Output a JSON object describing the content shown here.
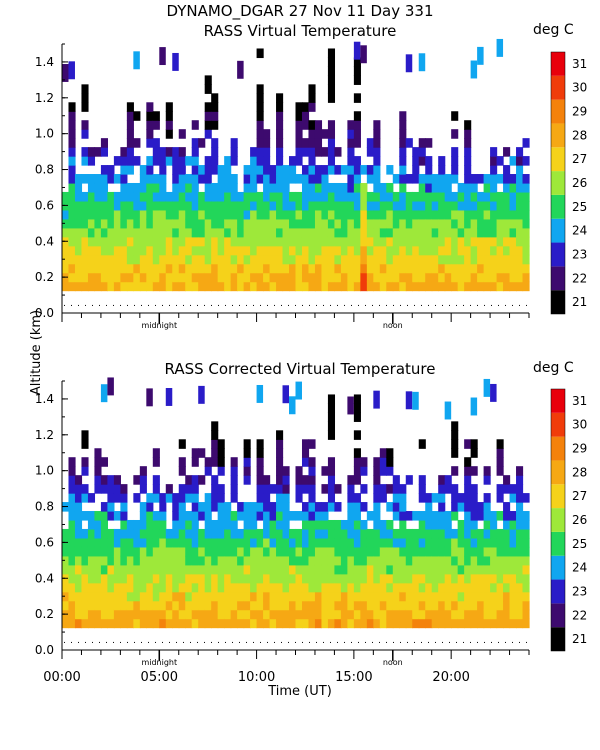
{
  "page": {
    "title": "DYNAMO_DGAR  27 Nov 11 Day 331",
    "ylabel": "Altitude (km)",
    "xlabel": "Time (UT)"
  },
  "chart_data": [
    {
      "type": "heatmap",
      "title": "RASS Virtual Temperature",
      "units": "deg C",
      "ylim": [
        0.0,
        1.5
      ],
      "yticks": [
        "0.0",
        "0.2",
        "0.4",
        "0.6",
        "0.8",
        "1.0",
        "1.2",
        "1.4"
      ],
      "xlim": [
        0,
        24
      ],
      "markers": [
        {
          "x": 5.0,
          "label": "midnight"
        },
        {
          "x": 17.0,
          "label": "noon"
        }
      ],
      "colorbar": {
        "values": [
          21,
          22,
          23,
          24,
          25,
          26,
          27,
          28,
          29,
          30,
          31
        ],
        "colors": [
          "#000000",
          "#3d0a6e",
          "#2a1cc8",
          "#10a6f0",
          "#22d65a",
          "#9ee83a",
          "#f5d21a",
          "#f6a814",
          "#f4820c",
          "#f03c0a",
          "#e8000c"
        ]
      }
    },
    {
      "type": "heatmap",
      "title": "RASS Corrected Virtual Temperature",
      "units": "deg C",
      "ylim": [
        0.0,
        1.5
      ],
      "yticks": [
        "0.0",
        "0.2",
        "0.4",
        "0.6",
        "0.8",
        "1.0",
        "1.2",
        "1.4"
      ],
      "xlim": [
        0,
        24
      ],
      "xticks": [
        "00:00",
        "05:00",
        "10:00",
        "15:00",
        "20:00"
      ],
      "markers": [
        {
          "x": 5.0,
          "label": "midnight"
        },
        {
          "x": 17.0,
          "label": "noon"
        }
      ],
      "colorbar": {
        "values": [
          21,
          22,
          23,
          24,
          25,
          26,
          27,
          28,
          29,
          30,
          31
        ],
        "colors": [
          "#000000",
          "#3d0a6e",
          "#2a1cc8",
          "#10a6f0",
          "#22d65a",
          "#9ee83a",
          "#f5d21a",
          "#f6a814",
          "#f4820c",
          "#f03c0a",
          "#e8000c"
        ]
      }
    }
  ]
}
